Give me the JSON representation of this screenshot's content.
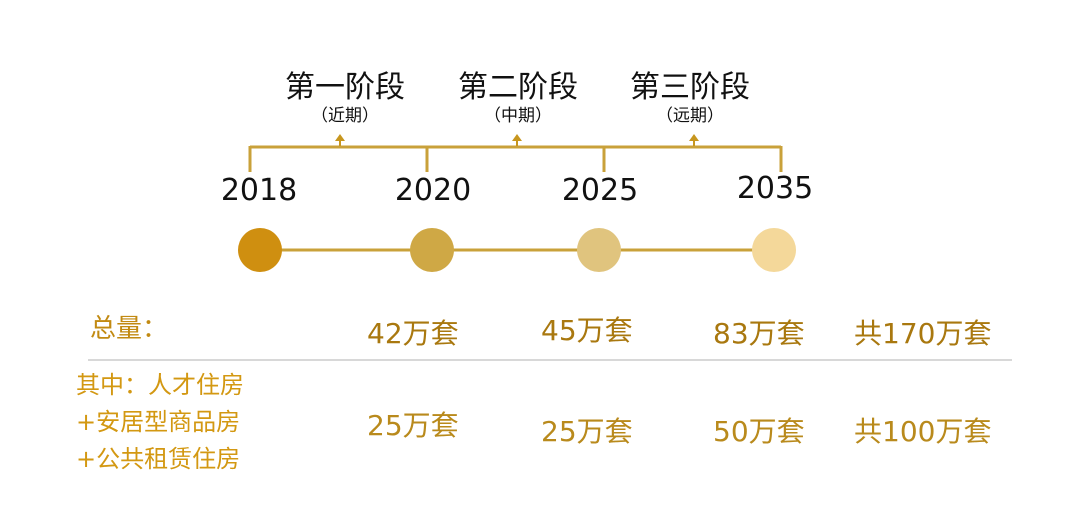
{
  "colors": {
    "line": "#c9a13a",
    "arrow": "#c7961e",
    "dot1": "#cf8f10",
    "dot2": "#cfa845",
    "dot3": "#e0c47e",
    "dot4": "#f4d89a",
    "divider": "#cccccc"
  },
  "phases": [
    {
      "title": "第一阶段",
      "subtitle": "（近期）"
    },
    {
      "title": "第二阶段",
      "subtitle": "（中期）"
    },
    {
      "title": "第三阶段",
      "subtitle": "（远期）"
    }
  ],
  "years": [
    "2018",
    "2020",
    "2025",
    "2035"
  ],
  "total": {
    "label": "总量：",
    "values": [
      "42万套",
      "45万套",
      "83万套",
      "共170万套"
    ]
  },
  "sub": {
    "label_lines": [
      "其中：人才住房",
      "+安居型商品房",
      "+公共租赁住房"
    ],
    "values": [
      "25万套",
      "25万套",
      "50万套",
      "共100万套"
    ]
  }
}
